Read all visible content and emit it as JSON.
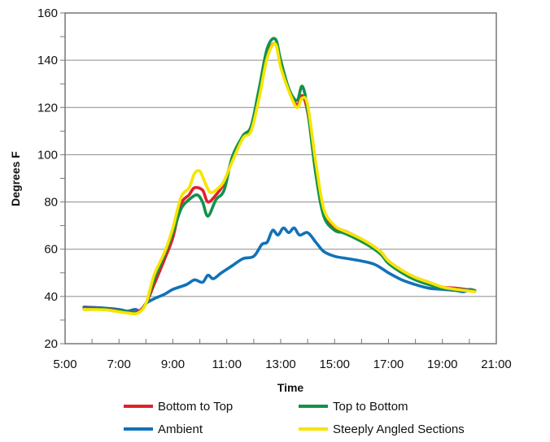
{
  "chart_data": {
    "type": "line",
    "xlabel": "Time",
    "ylabel": "Degrees F",
    "xlim": [
      5,
      21
    ],
    "ylim": [
      20,
      160
    ],
    "x_ticks": [
      5,
      7,
      9,
      11,
      13,
      15,
      17,
      19,
      21
    ],
    "x_tick_labels": [
      "5:00",
      "7:00",
      "9:00",
      "11:00",
      "13:00",
      "15:00",
      "17:00",
      "19:00",
      "21:00"
    ],
    "y_ticks": [
      20,
      40,
      60,
      80,
      100,
      120,
      140,
      160
    ],
    "y_tick_labels": [
      "20",
      "40",
      "60",
      "80",
      "100",
      "120",
      "140",
      "160"
    ],
    "grid": "horizontal",
    "legend_position": "bottom",
    "series": [
      {
        "name": "Bottom to Top",
        "color": "#e0202a",
        "points": [
          [
            5.7,
            35
          ],
          [
            6.5,
            34.8
          ],
          [
            7.3,
            33.5
          ],
          [
            7.7,
            33.5
          ],
          [
            8.0,
            37
          ],
          [
            8.3,
            45
          ],
          [
            8.7,
            56
          ],
          [
            9.0,
            65
          ],
          [
            9.3,
            79
          ],
          [
            9.6,
            83
          ],
          [
            9.8,
            86
          ],
          [
            10.1,
            85
          ],
          [
            10.3,
            80
          ],
          [
            10.6,
            83
          ],
          [
            10.9,
            88
          ],
          [
            11.2,
            98
          ],
          [
            11.6,
            108
          ],
          [
            11.9,
            111
          ],
          [
            12.2,
            125
          ],
          [
            12.5,
            142
          ],
          [
            12.8,
            147
          ],
          [
            13.0,
            138
          ],
          [
            13.3,
            128
          ],
          [
            13.6,
            121
          ],
          [
            13.8,
            125
          ],
          [
            14.0,
            118
          ],
          [
            14.3,
            95
          ],
          [
            14.6,
            76
          ],
          [
            15.0,
            69
          ],
          [
            15.3,
            68
          ],
          [
            15.7,
            66
          ],
          [
            16.2,
            63
          ],
          [
            16.7,
            59
          ],
          [
            17.0,
            55
          ],
          [
            17.5,
            51
          ],
          [
            18.0,
            48
          ],
          [
            18.5,
            46
          ],
          [
            19.0,
            44
          ],
          [
            19.5,
            43.5
          ],
          [
            20.2,
            42.5
          ]
        ]
      },
      {
        "name": "Top to Bottom",
        "color": "#12924a",
        "points": [
          [
            5.7,
            34.5
          ],
          [
            6.5,
            34.5
          ],
          [
            7.3,
            33.5
          ],
          [
            7.7,
            33
          ],
          [
            8.0,
            37
          ],
          [
            8.3,
            47
          ],
          [
            8.7,
            58
          ],
          [
            9.0,
            67
          ],
          [
            9.3,
            77
          ],
          [
            9.6,
            81
          ],
          [
            9.9,
            83
          ],
          [
            10.1,
            80
          ],
          [
            10.3,
            74
          ],
          [
            10.6,
            81
          ],
          [
            10.9,
            85
          ],
          [
            11.2,
            99
          ],
          [
            11.6,
            108
          ],
          [
            11.9,
            112
          ],
          [
            12.2,
            128
          ],
          [
            12.5,
            145
          ],
          [
            12.8,
            149
          ],
          [
            13.0,
            140
          ],
          [
            13.3,
            128
          ],
          [
            13.6,
            123
          ],
          [
            13.8,
            129
          ],
          [
            14.0,
            119
          ],
          [
            14.3,
            92
          ],
          [
            14.6,
            74
          ],
          [
            15.0,
            68
          ],
          [
            15.3,
            67
          ],
          [
            15.7,
            65
          ],
          [
            16.2,
            62
          ],
          [
            16.7,
            58
          ],
          [
            17.0,
            54
          ],
          [
            17.5,
            50
          ],
          [
            18.0,
            47
          ],
          [
            18.5,
            45
          ],
          [
            19.0,
            43.5
          ],
          [
            19.5,
            43
          ],
          [
            20.2,
            42.5
          ]
        ]
      },
      {
        "name": "Ambient",
        "color": "#1172b8",
        "points": [
          [
            5.7,
            35.5
          ],
          [
            6.3,
            35.2
          ],
          [
            7.0,
            34.5
          ],
          [
            7.3,
            33.8
          ],
          [
            7.6,
            34.5
          ],
          [
            7.8,
            33.8
          ],
          [
            8.0,
            37
          ],
          [
            8.3,
            39
          ],
          [
            8.7,
            41
          ],
          [
            9.0,
            43
          ],
          [
            9.5,
            45
          ],
          [
            9.8,
            47
          ],
          [
            10.1,
            46
          ],
          [
            10.3,
            49
          ],
          [
            10.5,
            47.5
          ],
          [
            10.8,
            50
          ],
          [
            11.2,
            53
          ],
          [
            11.6,
            56
          ],
          [
            12.0,
            57
          ],
          [
            12.3,
            62
          ],
          [
            12.5,
            63
          ],
          [
            12.7,
            68
          ],
          [
            12.9,
            66
          ],
          [
            13.1,
            69
          ],
          [
            13.3,
            67
          ],
          [
            13.5,
            69
          ],
          [
            13.7,
            66
          ],
          [
            14.0,
            67
          ],
          [
            14.3,
            63
          ],
          [
            14.6,
            59
          ],
          [
            15.0,
            57
          ],
          [
            15.5,
            56
          ],
          [
            16.0,
            55
          ],
          [
            16.5,
            53.5
          ],
          [
            17.0,
            50
          ],
          [
            17.5,
            47
          ],
          [
            18.0,
            45
          ],
          [
            18.5,
            43.5
          ],
          [
            19.0,
            43
          ],
          [
            19.5,
            42.5
          ],
          [
            19.8,
            42
          ],
          [
            20.0,
            43
          ],
          [
            20.2,
            42.5
          ]
        ]
      },
      {
        "name": "Steeply Angled Sections",
        "color": "#f7e400",
        "points": [
          [
            5.7,
            34.5
          ],
          [
            6.5,
            34.3
          ],
          [
            7.3,
            33
          ],
          [
            7.7,
            33
          ],
          [
            8.0,
            37
          ],
          [
            8.3,
            49
          ],
          [
            8.7,
            59
          ],
          [
            9.0,
            69
          ],
          [
            9.3,
            82
          ],
          [
            9.6,
            86
          ],
          [
            9.8,
            92
          ],
          [
            10.0,
            93
          ],
          [
            10.2,
            88
          ],
          [
            10.4,
            84
          ],
          [
            10.7,
            86
          ],
          [
            10.9,
            89
          ],
          [
            11.2,
            97
          ],
          [
            11.6,
            107
          ],
          [
            11.9,
            110
          ],
          [
            12.2,
            124
          ],
          [
            12.5,
            141
          ],
          [
            12.8,
            147
          ],
          [
            13.0,
            137
          ],
          [
            13.3,
            127
          ],
          [
            13.6,
            120
          ],
          [
            13.8,
            124
          ],
          [
            14.0,
            121
          ],
          [
            14.3,
            97
          ],
          [
            14.6,
            77
          ],
          [
            15.0,
            70
          ],
          [
            15.3,
            68
          ],
          [
            15.7,
            66
          ],
          [
            16.2,
            63
          ],
          [
            16.7,
            59
          ],
          [
            17.0,
            55
          ],
          [
            17.5,
            51
          ],
          [
            18.0,
            48
          ],
          [
            18.5,
            46
          ],
          [
            19.0,
            44
          ],
          [
            19.5,
            43
          ],
          [
            20.2,
            42
          ]
        ]
      }
    ]
  },
  "legend": {
    "items": [
      {
        "label": "Bottom to Top",
        "color": "#e0202a"
      },
      {
        "label": "Top to Bottom",
        "color": "#12924a"
      },
      {
        "label": "Ambient",
        "color": "#1172b8"
      },
      {
        "label": "Steeply Angled Sections",
        "color": "#f7e400"
      }
    ]
  }
}
